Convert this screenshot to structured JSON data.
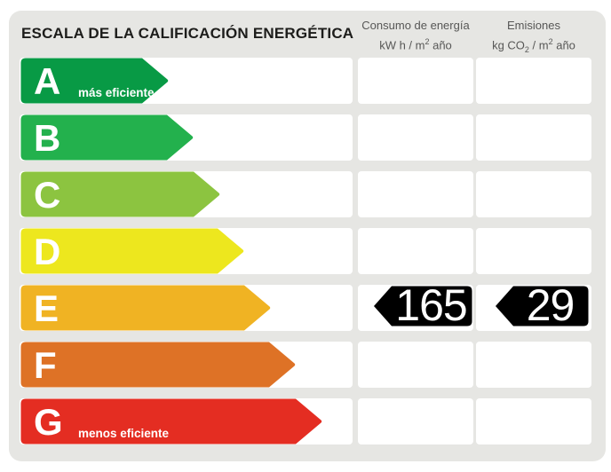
{
  "title": "ESCALA DE LA CALIFICACIÓN ENERGÉTICA",
  "header": {
    "col1": {
      "title": "Consumo de energía",
      "unit_pre": "kW h  / m",
      "unit_sup": "2",
      "unit_post": " año"
    },
    "col2": {
      "title": "Emisiones",
      "unit_pre": "kg CO",
      "unit_sub": "2",
      "unit_mid": " / m",
      "unit_sup": "2",
      "unit_post": " año"
    }
  },
  "scale": {
    "rows": [
      {
        "letter": "A",
        "label": "más eficiente",
        "color": "#089A45",
        "arrow_width": 168
      },
      {
        "letter": "B",
        "label": "",
        "color": "#23B14D",
        "arrow_width": 196
      },
      {
        "letter": "C",
        "label": "",
        "color": "#8CC440",
        "arrow_width": 226
      },
      {
        "letter": "D",
        "label": "",
        "color": "#EDE71E",
        "arrow_width": 253
      },
      {
        "letter": "E",
        "label": "",
        "color": "#F0B323",
        "arrow_width": 283
      },
      {
        "letter": "F",
        "label": "",
        "color": "#DE7226",
        "arrow_width": 311
      },
      {
        "letter": "G",
        "label": "menos eficiente",
        "color": "#E42D22",
        "arrow_width": 341
      }
    ]
  },
  "rating": {
    "letter": "E",
    "consumo_value": "165",
    "emisiones_value": "29",
    "pointer_color": "#000000"
  },
  "colors": {
    "card_background": "#E6E6E3",
    "row_background": "#FFFFFF",
    "title_text": "#1D1D1B",
    "header_text": "#575756",
    "pointer_value_text": "#FFFFFF"
  },
  "chart_data": {
    "type": "bar",
    "title": "ESCALA DE LA CALIFICACIÓN ENERGÉTICA",
    "categories": [
      "A",
      "B",
      "C",
      "D",
      "E",
      "F",
      "G"
    ],
    "category_labels": {
      "A": "más eficiente",
      "G": "menos eficiente"
    },
    "bar_colors": [
      "#089A45",
      "#23B14D",
      "#8CC440",
      "#EDE71E",
      "#F0B323",
      "#DE7226",
      "#E42D22"
    ],
    "selected_rating": "E",
    "values": {
      "consumo_de_energia_kwh_m2_ano": 165,
      "emisiones_kg_co2_m2_ano": 29
    },
    "columns": [
      "Consumo de energía kW h / m² año",
      "Emisiones kg CO₂ / m² año"
    ],
    "legend_position": "none",
    "grid": false
  }
}
